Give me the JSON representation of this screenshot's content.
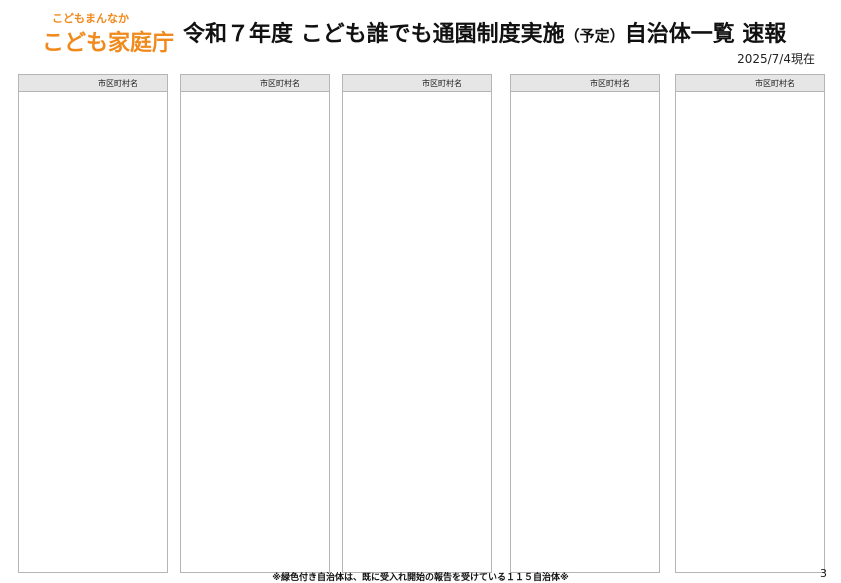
{
  "logo": {
    "subtitle": "こどもまんなか",
    "name": "こども家庭庁"
  },
  "title": "令和７年度 こども誰でも通園制度実施",
  "title_note": "（予定）",
  "title_tail": "自治体一覧 速報",
  "date": "2025/7/4現在",
  "column_header": "市区町村名",
  "footer": "※緑色付き自治体は、既に受入れ開始の報告を受けている１１５自治体※",
  "page_number": "3",
  "colors": {
    "accent": "#f08a1c",
    "header_bg": "#e6e6e6",
    "green_highlight": "#92d050"
  }
}
